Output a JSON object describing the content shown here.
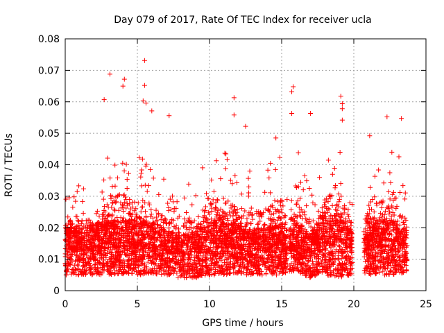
{
  "chart_data": {
    "type": "scatter",
    "title": "Day 079 of 2017, Rate Of TEC Index for receiver ucla",
    "xlabel": "GPS time / hours",
    "ylabel": "ROTI / TECUs",
    "xlim": [
      0,
      25
    ],
    "ylim": [
      0,
      0.08
    ],
    "xticks": [
      0,
      5,
      10,
      15,
      20,
      25
    ],
    "yticks": [
      0,
      0.01,
      0.02,
      0.03,
      0.04,
      0.05,
      0.06,
      0.07,
      0.08
    ],
    "xtick_labels": [
      "0",
      "5",
      "10",
      "15",
      "20",
      "25"
    ],
    "ytick_labels": [
      "0",
      "0.01",
      "0.02",
      "0.03",
      "0.04",
      "0.05",
      "0.06",
      "0.07",
      "0.08"
    ],
    "grid": true,
    "marker": "+",
    "color": "#ff0000",
    "data_gap_hours": [
      19.9,
      20.7
    ],
    "notable_points": [
      {
        "x": 3.1,
        "y": 0.0688
      },
      {
        "x": 4.1,
        "y": 0.0672
      },
      {
        "x": 4.0,
        "y": 0.065
      },
      {
        "x": 5.5,
        "y": 0.0731
      },
      {
        "x": 5.5,
        "y": 0.0652
      },
      {
        "x": 5.4,
        "y": 0.0603
      },
      {
        "x": 5.6,
        "y": 0.0596
      },
      {
        "x": 6.0,
        "y": 0.0571
      },
      {
        "x": 2.7,
        "y": 0.0607
      },
      {
        "x": 7.2,
        "y": 0.0556
      },
      {
        "x": 11.7,
        "y": 0.0613
      },
      {
        "x": 11.7,
        "y": 0.0558
      },
      {
        "x": 15.8,
        "y": 0.0648
      },
      {
        "x": 15.7,
        "y": 0.0632
      },
      {
        "x": 15.7,
        "y": 0.0563
      },
      {
        "x": 17.0,
        "y": 0.0563
      },
      {
        "x": 19.1,
        "y": 0.0618
      },
      {
        "x": 19.2,
        "y": 0.0594
      },
      {
        "x": 19.2,
        "y": 0.0578
      },
      {
        "x": 19.2,
        "y": 0.0542
      },
      {
        "x": 22.3,
        "y": 0.0552
      },
      {
        "x": 23.3,
        "y": 0.0547
      },
      {
        "x": 21.1,
        "y": 0.0492
      },
      {
        "x": 14.6,
        "y": 0.0485
      },
      {
        "x": 12.5,
        "y": 0.0522
      }
    ],
    "envelope": {
      "description_free": true,
      "segments": [
        {
          "x": [
            0.0,
            1.0,
            2.0,
            3.0,
            4.0,
            5.0,
            6.0,
            7.0,
            8.0,
            9.0,
            10.0,
            11.0,
            12.0,
            13.0,
            14.0,
            15.0,
            15.4
          ],
          "upper": [
            0.03,
            0.036,
            0.03,
            0.045,
            0.048,
            0.044,
            0.043,
            0.034,
            0.03,
            0.038,
            0.042,
            0.045,
            0.04,
            0.038,
            0.041,
            0.045,
            0.03
          ],
          "lower": [
            0.005,
            0.005,
            0.005,
            0.005,
            0.005,
            0.005,
            0.005,
            0.005,
            0.004,
            0.004,
            0.005,
            0.005,
            0.005,
            0.005,
            0.005,
            0.005,
            0.005
          ],
          "core": [
            0.0125,
            0.013,
            0.013,
            0.014,
            0.014,
            0.014,
            0.014,
            0.012,
            0.011,
            0.012,
            0.014,
            0.015,
            0.013,
            0.012,
            0.013,
            0.013,
            0.012
          ]
        },
        {
          "x": [
            15.5,
            16.0,
            17.0,
            17.5,
            18.0,
            19.0,
            19.9
          ],
          "upper": [
            0.038,
            0.046,
            0.034,
            0.033,
            0.045,
            0.048,
            0.03
          ],
          "lower": [
            0.006,
            0.006,
            0.004,
            0.005,
            0.005,
            0.004,
            0.005
          ],
          "core": [
            0.012,
            0.014,
            0.011,
            0.013,
            0.015,
            0.015,
            0.012
          ]
        },
        {
          "x": [
            20.7,
            21.0,
            22.0,
            23.0,
            23.7
          ],
          "upper": [
            0.03,
            0.04,
            0.044,
            0.045,
            0.035
          ],
          "lower": [
            0.005,
            0.005,
            0.005,
            0.005,
            0.006
          ],
          "core": [
            0.012,
            0.013,
            0.014,
            0.014,
            0.012
          ]
        }
      ]
    }
  }
}
